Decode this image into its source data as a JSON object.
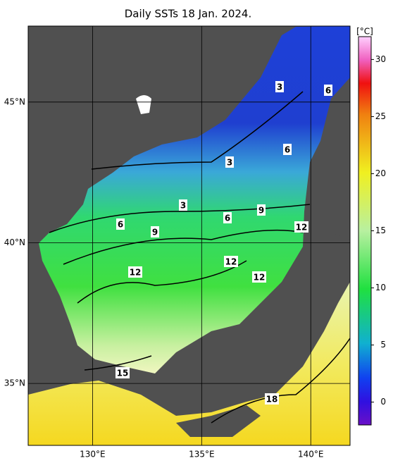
{
  "title": "Daily SSTs 18 Jan. 2024.",
  "map": {
    "lonlim": [
      127.05,
      141.8
    ],
    "latlim": [
      32.8,
      47.7
    ],
    "lon_ticks": [
      {
        "value": 130,
        "label": "130°E"
      },
      {
        "value": 135,
        "label": "135°E"
      },
      {
        "value": 140,
        "label": "140°E"
      }
    ],
    "lat_ticks": [
      {
        "value": 45,
        "label": "45°N"
      },
      {
        "value": 40,
        "label": "40°N"
      },
      {
        "value": 35,
        "label": "35°N"
      }
    ],
    "contour_labels": [
      "3",
      "6",
      "6",
      "3",
      "3",
      "6",
      "9",
      "6",
      "9",
      "12",
      "12",
      "12",
      "12",
      "15",
      "18"
    ]
  },
  "colorbar": {
    "unit": "[°C]",
    "lim": [
      -2,
      32
    ],
    "ticks": [
      0,
      5,
      10,
      15,
      20,
      25,
      30
    ]
  }
}
